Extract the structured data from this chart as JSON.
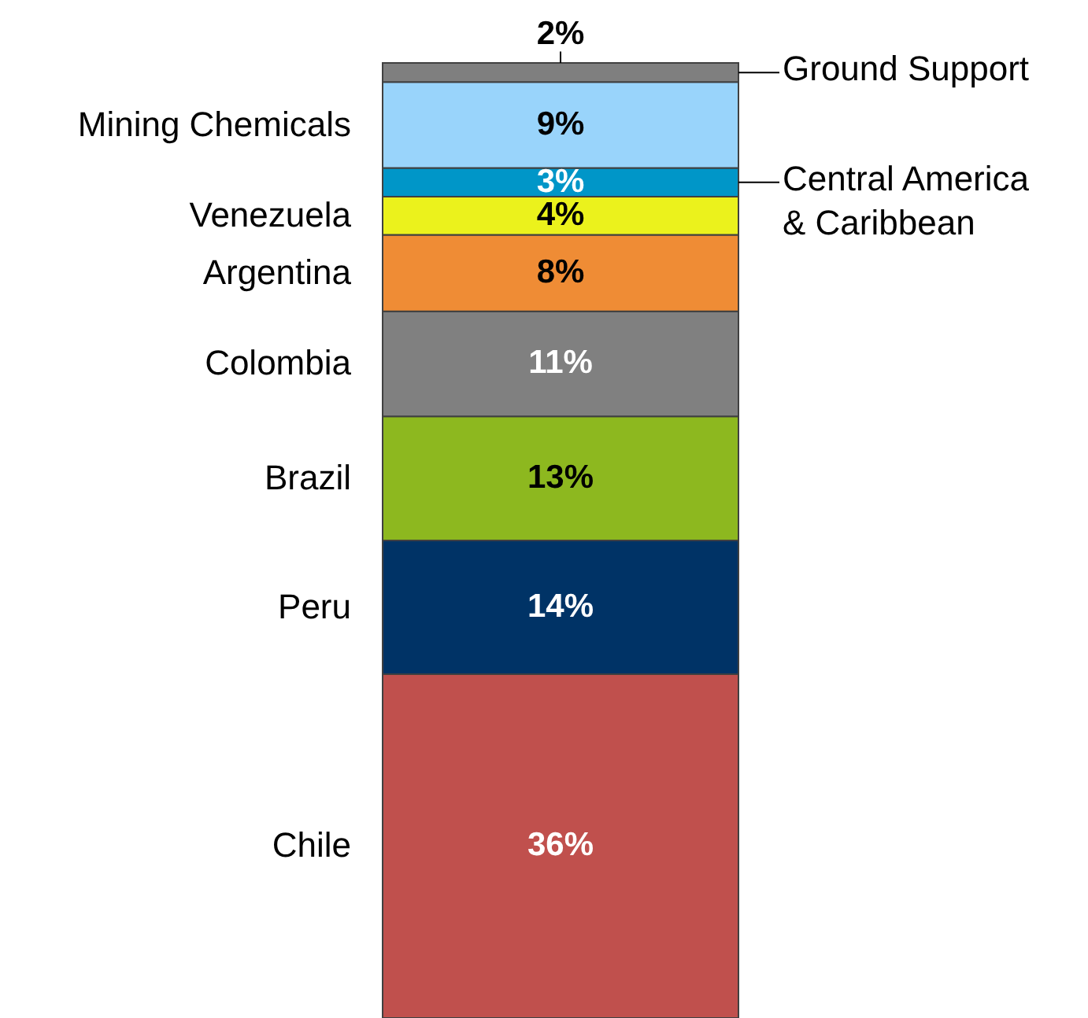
{
  "chart_data": {
    "type": "bar",
    "stacked": true,
    "categories": [
      null
    ],
    "series": [
      {
        "name": "Chile",
        "color": "#c0504d",
        "values": [
          36
        ],
        "value_labels": [
          "36%"
        ]
      },
      {
        "name": "Peru",
        "color": "#003366",
        "values": [
          14
        ],
        "value_labels": [
          "14%"
        ]
      },
      {
        "name": "Brazil",
        "color": "#8db81f",
        "values": [
          13
        ],
        "value_labels": [
          "13%"
        ]
      },
      {
        "name": "Colombia",
        "color": "#808080",
        "values": [
          11
        ],
        "value_labels": [
          "11%"
        ]
      },
      {
        "name": "Argentina",
        "color": "#ef8c35",
        "values": [
          8
        ],
        "value_labels": [
          "8%"
        ]
      },
      {
        "name": "Venezuela",
        "color": "#ebf21c",
        "values": [
          4
        ],
        "value_labels": [
          "4%"
        ]
      },
      {
        "name": "Central America & Caribbean",
        "color": "#0096c8",
        "values": [
          3
        ],
        "value_labels": [
          "3%"
        ]
      },
      {
        "name": "Mining Chemicals",
        "color": "#99d4fb",
        "values": [
          9
        ],
        "value_labels": [
          "9%"
        ]
      },
      {
        "name": "Ground Support",
        "color": "#7f7f7f",
        "values": [
          2
        ],
        "value_labels": [
          "2%"
        ]
      }
    ]
  }
}
